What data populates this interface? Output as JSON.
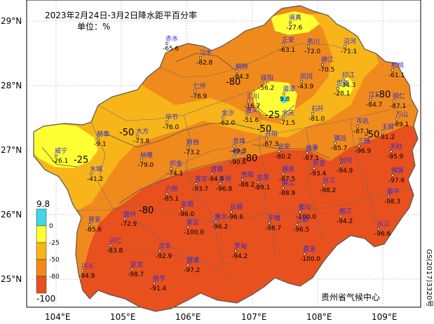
{
  "title": "2023年2月24日-3月2日降水距平百分率",
  "unit": "单位：%",
  "credit": "贵州省气候中心",
  "map_code": "GS(2017)3320号",
  "axes": {
    "x_ticks": [
      "104°E",
      "105°E",
      "106°E",
      "107°E",
      "108°E",
      "109°E"
    ],
    "y_ticks": [
      "29°N",
      "28°N",
      "27°N",
      "26°N",
      "25°N"
    ]
  },
  "legend": {
    "max_label": "9.8",
    "min_label": "-100",
    "bands": [
      {
        "label": "0",
        "color": "#3fd7e6"
      },
      {
        "label": "-25",
        "color": "#ffff33"
      },
      {
        "label": "-50",
        "color": "#f7b519"
      },
      {
        "label": "-80",
        "color": "#f08a1c"
      },
      {
        "label": "",
        "color": "#e8501e"
      }
    ]
  },
  "contour_labels": [
    "-80",
    "-25",
    "-50",
    "-80",
    "-50",
    "-80",
    "-25",
    "-80",
    "-50"
  ],
  "stations": [
    {
      "name": "道真",
      "value": "-27.6"
    },
    {
      "name": "赤水",
      "value": "-65.6"
    },
    {
      "name": "正安",
      "value": "-63.1"
    },
    {
      "name": "务川",
      "value": "-72.0"
    },
    {
      "name": "沿河",
      "value": "-71.1"
    },
    {
      "name": "习水",
      "value": "-82.8"
    },
    {
      "name": "桐梓",
      "value": "-84.3"
    },
    {
      "name": "凤冈",
      "value": "-43.9"
    },
    {
      "name": "德江",
      "value": "-70.5"
    },
    {
      "name": "印江",
      "value": "-34.3"
    },
    {
      "name": "松桃",
      "value": "-61.1"
    },
    {
      "name": "仁怀",
      "value": "-78.9"
    },
    {
      "name": "绥阳",
      "value": "-56.2"
    },
    {
      "name": "湄潭",
      "value": "9.8"
    },
    {
      "name": "思南",
      "value": "-28.1"
    },
    {
      "name": "江口",
      "value": "-84.7"
    },
    {
      "name": "铜仁",
      "value": "-87.1"
    },
    {
      "name": "汇川",
      "value": "-16.7"
    },
    {
      "name": "遵义",
      "value": "-51.6"
    },
    {
      "name": "余庆",
      "value": "-71.5"
    },
    {
      "name": "石阡",
      "value": "-81.0"
    },
    {
      "name": "万山",
      "value": "-89.1"
    },
    {
      "name": "毕节",
      "value": "-76.0"
    },
    {
      "name": "金沙",
      "value": "-62.0"
    },
    {
      "name": "赫章",
      "value": "-9.1"
    },
    {
      "name": "大方",
      "value": "-73.8"
    },
    {
      "name": "黔西",
      "value": "-73.2"
    },
    {
      "name": "息烽",
      "value": "-49.3"
    },
    {
      "name": "开阳",
      "value": "-87.3"
    },
    {
      "name": "镇远",
      "value": "-85.7"
    },
    {
      "name": "岑巩",
      "value": "-87.1"
    },
    {
      "name": "玉屏",
      "value": "-81.2"
    },
    {
      "name": "威宁",
      "value": "-26.1"
    },
    {
      "name": "纳雍",
      "value": "-79.0"
    },
    {
      "name": "织金",
      "value": "-74.1"
    },
    {
      "name": "修文",
      "value": "-90.6"
    },
    {
      "name": "瓮安",
      "value": "-80.2"
    },
    {
      "name": "施秉",
      "value": "-87.1"
    },
    {
      "name": "三穗",
      "value": "-96.9"
    },
    {
      "name": "天柱",
      "value": "-95.9"
    },
    {
      "name": "水城",
      "value": "-41.2"
    },
    {
      "name": "清镇",
      "value": "-94.6"
    },
    {
      "name": "贵阳",
      "value": "-88.2"
    },
    {
      "name": "福泉",
      "value": "-87.5"
    },
    {
      "name": "凯里",
      "value": "-93.4"
    },
    {
      "name": "剑河",
      "value": "-94.9"
    },
    {
      "name": "锦屏",
      "value": "-97.6"
    },
    {
      "name": "六枝",
      "value": "-85.1"
    },
    {
      "name": "普定",
      "value": "-93.7"
    },
    {
      "name": "平坝",
      "value": "-96.8"
    },
    {
      "name": "龙里",
      "value": "-89.1"
    },
    {
      "name": "麻江",
      "value": "-88.9"
    },
    {
      "name": "台江",
      "value": "-98.2"
    },
    {
      "name": "黎平",
      "value": "-98.3"
    },
    {
      "name": "盘州",
      "value": "-72.9"
    },
    {
      "name": "安顺",
      "value": "-96.0"
    },
    {
      "name": "长顺",
      "value": "-96.6"
    },
    {
      "name": "都匀",
      "value": "-100.0"
    },
    {
      "name": "榕江",
      "value": "-94.2"
    },
    {
      "name": "普安",
      "value": "-85.6"
    },
    {
      "name": "紫云",
      "value": "-100.0"
    },
    {
      "name": "惠水",
      "value": "-96.2"
    },
    {
      "name": "平塘",
      "value": "-98.7"
    },
    {
      "name": "三都",
      "value": "-96.5"
    },
    {
      "name": "兴仁",
      "value": "-83.8"
    },
    {
      "name": "贞丰",
      "value": "-92.9"
    },
    {
      "name": "罗甸",
      "value": "-94.2"
    },
    {
      "name": "荔波",
      "value": "-100.0"
    },
    {
      "name": "从江",
      "value": "-96.6"
    },
    {
      "name": "兴义",
      "value": "-84.9"
    },
    {
      "name": "安龙",
      "value": "-98.7"
    },
    {
      "name": "册亨",
      "value": "-91.4"
    },
    {
      "name": "望谟",
      "value": "-97.2"
    }
  ]
}
